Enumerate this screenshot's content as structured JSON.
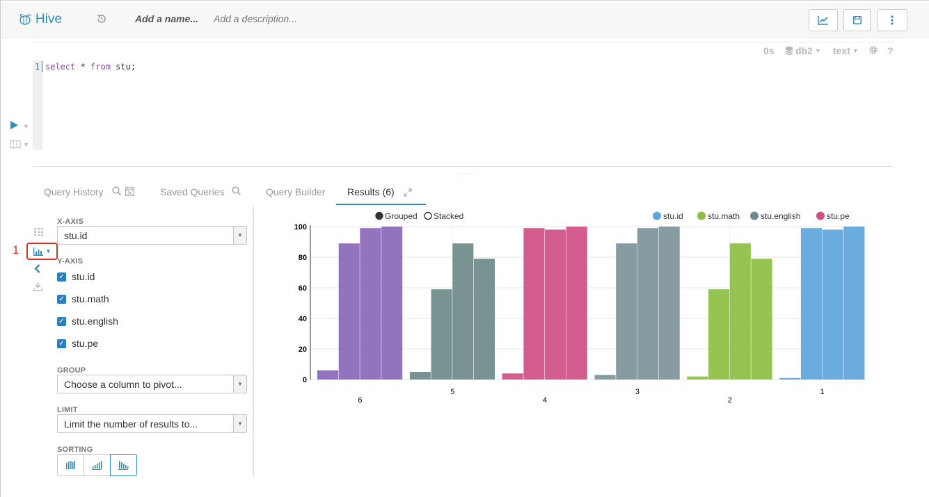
{
  "header": {
    "app_name": "Hive",
    "name_placeholder": "Add a name...",
    "description_placeholder": "Add a description..."
  },
  "editor": {
    "execution_time": "0s",
    "database": "db2",
    "format": "text",
    "help": "?",
    "line_number": "1",
    "code": {
      "kw1": "select",
      "star": " * ",
      "kw2": "from",
      "rest": " stu;"
    }
  },
  "tabs": [
    {
      "label": "Query History"
    },
    {
      "label": "Saved Queries"
    },
    {
      "label": "Query Builder"
    },
    {
      "label": "Results (6)"
    }
  ],
  "annotation": {
    "number": "1"
  },
  "settings": {
    "x_axis_label": "X-AXIS",
    "x_axis_value": "stu.id",
    "y_axis_label": "Y-AXIS",
    "y_columns": [
      "stu.id",
      "stu.math",
      "stu.english",
      "stu.pe"
    ],
    "group_label": "GROUP",
    "group_placeholder": "Choose a column to pivot...",
    "limit_label": "LIMIT",
    "limit_placeholder": "Limit the number of results to...",
    "sorting_label": "SORTING"
  },
  "chart_data": {
    "type": "bar",
    "mode_options": [
      "Grouped",
      "Stacked"
    ],
    "selected_mode": "Grouped",
    "categories": [
      "6",
      "5",
      "4",
      "3",
      "2",
      "1"
    ],
    "series": [
      {
        "name": "stu.id",
        "color": "#5da5da",
        "values": [
          6,
          5,
          4,
          3,
          2,
          1
        ]
      },
      {
        "name": "stu.math",
        "color": "#8cbf41",
        "values": [
          89,
          59,
          99,
          89,
          59,
          99
        ]
      },
      {
        "name": "stu.english",
        "color": "#6e8a91",
        "values": [
          99,
          89,
          98,
          99,
          89,
          98
        ]
      },
      {
        "name": "stu.pe",
        "color": "#d44f86",
        "values": [
          100,
          79,
          100,
          100,
          79,
          100
        ]
      }
    ],
    "bar_colors_by_category": [
      "#8a66b8",
      "#6e8a8a",
      "#d04f86",
      "#7c939a",
      "#8cbf41",
      "#5da5da"
    ],
    "y_ticks": [
      "0",
      "20",
      "40",
      "60",
      "80",
      "100"
    ],
    "ylim": [
      0,
      100
    ],
    "legend_placement": "top-right",
    "grid": true
  }
}
